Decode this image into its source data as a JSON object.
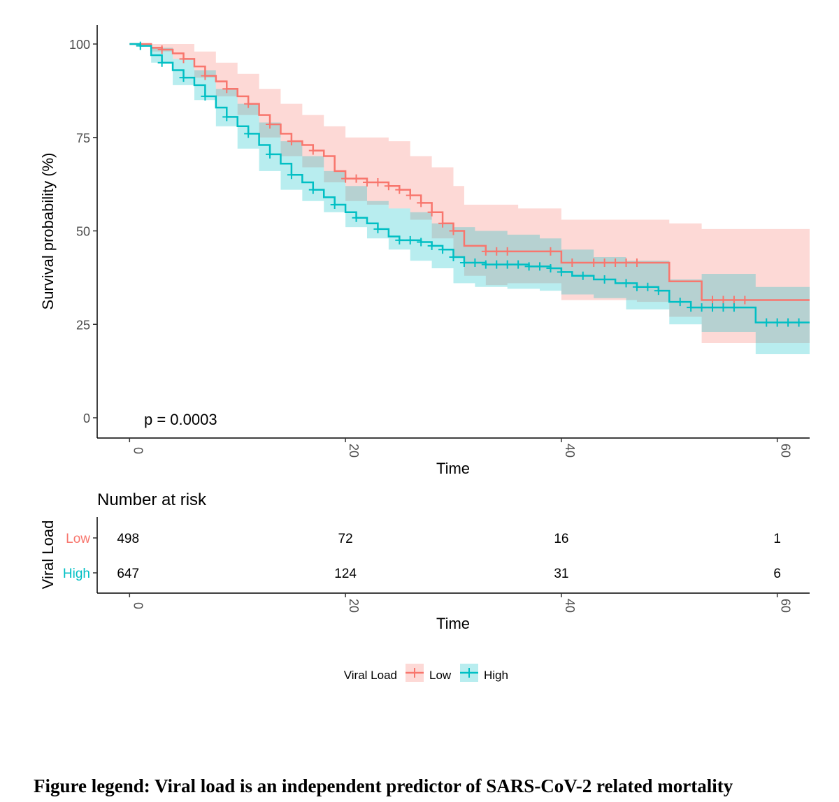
{
  "caption": "Figure legend: Viral load is an independent predictor of SARS-CoV-2 related mortality",
  "chart_data": {
    "type": "line",
    "subtype": "kaplan-meier",
    "ylabel": "Survival probability (%)",
    "xlabel": "Time",
    "xlim": [
      -3,
      63
    ],
    "ylim": [
      0,
      100
    ],
    "xticks": [
      0,
      20,
      40,
      60
    ],
    "yticks": [
      0,
      25,
      50,
      75,
      100
    ],
    "annotation": "p = 0.0003",
    "grid": false,
    "legend": {
      "title": "Viral Load",
      "position": "bottom",
      "items": [
        "Low",
        "High"
      ]
    },
    "colors": {
      "Low": "#F8766D",
      "High": "#00BFC4"
    },
    "series": [
      {
        "name": "Low",
        "color": "#F8766D",
        "points": [
          [
            0,
            100
          ],
          [
            1,
            100
          ],
          [
            2,
            99
          ],
          [
            3,
            98.5
          ],
          [
            4,
            97.5
          ],
          [
            5,
            96
          ],
          [
            6,
            94
          ],
          [
            7,
            91.5
          ],
          [
            8,
            90
          ],
          [
            9,
            88
          ],
          [
            10,
            86
          ],
          [
            11,
            84
          ],
          [
            12,
            81
          ],
          [
            13,
            78.5
          ],
          [
            14,
            76
          ],
          [
            15,
            74
          ],
          [
            16,
            73
          ],
          [
            17,
            71.5
          ],
          [
            18,
            70
          ],
          [
            19,
            66
          ],
          [
            20,
            64
          ],
          [
            22,
            63
          ],
          [
            24,
            62
          ],
          [
            25,
            61
          ],
          [
            26,
            59.5
          ],
          [
            27,
            57.5
          ],
          [
            28,
            55
          ],
          [
            29,
            52
          ],
          [
            30,
            50
          ],
          [
            31,
            46
          ],
          [
            33,
            44.5
          ],
          [
            35,
            44.5
          ],
          [
            36,
            44.5
          ],
          [
            40,
            41.5
          ],
          [
            47,
            41.5
          ],
          [
            50,
            36.5
          ],
          [
            53,
            31.5
          ],
          [
            63,
            31.5
          ]
        ],
        "ci_upper": [
          [
            0,
            100
          ],
          [
            2,
            100
          ],
          [
            4,
            100
          ],
          [
            6,
            98
          ],
          [
            8,
            95
          ],
          [
            10,
            92
          ],
          [
            12,
            88
          ],
          [
            14,
            84
          ],
          [
            16,
            81
          ],
          [
            18,
            78
          ],
          [
            20,
            75
          ],
          [
            22,
            75
          ],
          [
            24,
            74
          ],
          [
            26,
            70
          ],
          [
            28,
            67
          ],
          [
            30,
            62
          ],
          [
            31,
            57
          ],
          [
            33,
            57
          ],
          [
            36,
            56
          ],
          [
            40,
            53
          ],
          [
            47,
            53
          ],
          [
            50,
            52
          ],
          [
            53,
            50.5
          ],
          [
            63,
            50.5
          ]
        ],
        "ci_lower": [
          [
            0,
            100
          ],
          [
            2,
            98
          ],
          [
            4,
            96
          ],
          [
            6,
            91
          ],
          [
            8,
            86
          ],
          [
            10,
            81
          ],
          [
            12,
            75
          ],
          [
            14,
            70
          ],
          [
            16,
            67
          ],
          [
            18,
            63
          ],
          [
            20,
            58
          ],
          [
            22,
            57
          ],
          [
            24,
            56
          ],
          [
            26,
            53
          ],
          [
            28,
            48
          ],
          [
            30,
            43
          ],
          [
            31,
            38
          ],
          [
            33,
            35.5
          ],
          [
            35,
            36
          ],
          [
            40,
            31.5
          ],
          [
            47,
            31
          ],
          [
            50,
            27
          ],
          [
            53,
            20
          ],
          [
            63,
            20
          ]
        ],
        "censor_times": [
          3,
          5,
          7,
          9,
          11,
          13,
          15,
          17,
          20,
          21,
          22,
          23,
          24,
          25,
          26,
          27,
          28,
          29,
          30,
          33,
          34,
          35,
          39,
          41,
          43,
          44,
          45,
          46,
          47,
          54,
          55,
          56,
          57
        ]
      },
      {
        "name": "High",
        "color": "#00BFC4",
        "points": [
          [
            0,
            100
          ],
          [
            1,
            99.5
          ],
          [
            2,
            97
          ],
          [
            3,
            95
          ],
          [
            4,
            93
          ],
          [
            5,
            91
          ],
          [
            6,
            89
          ],
          [
            7,
            86
          ],
          [
            8,
            83
          ],
          [
            9,
            80.5
          ],
          [
            10,
            78
          ],
          [
            11,
            76
          ],
          [
            12,
            73
          ],
          [
            13,
            70.5
          ],
          [
            14,
            68
          ],
          [
            15,
            65
          ],
          [
            16,
            63
          ],
          [
            17,
            61
          ],
          [
            18,
            59
          ],
          [
            19,
            57
          ],
          [
            20,
            55
          ],
          [
            21,
            53.5
          ],
          [
            22,
            52
          ],
          [
            23,
            50.5
          ],
          [
            24,
            48.5
          ],
          [
            25,
            47.5
          ],
          [
            26,
            47.5
          ],
          [
            27,
            47
          ],
          [
            28,
            46
          ],
          [
            29,
            45
          ],
          [
            30,
            43
          ],
          [
            31,
            41.5
          ],
          [
            33,
            41
          ],
          [
            35,
            41
          ],
          [
            37,
            40.5
          ],
          [
            39,
            40
          ],
          [
            40,
            39
          ],
          [
            41,
            38
          ],
          [
            43,
            37
          ],
          [
            45,
            36
          ],
          [
            47,
            35
          ],
          [
            49,
            34
          ],
          [
            50,
            31
          ],
          [
            52,
            29.5
          ],
          [
            58,
            25.5
          ],
          [
            63,
            25.5
          ]
        ],
        "ci_upper": [
          [
            0,
            100
          ],
          [
            2,
            99
          ],
          [
            4,
            96
          ],
          [
            6,
            93
          ],
          [
            8,
            88
          ],
          [
            10,
            84
          ],
          [
            12,
            79
          ],
          [
            14,
            74
          ],
          [
            16,
            70
          ],
          [
            18,
            66
          ],
          [
            20,
            62
          ],
          [
            22,
            58
          ],
          [
            24,
            56
          ],
          [
            26,
            55
          ],
          [
            28,
            52
          ],
          [
            30,
            51
          ],
          [
            32,
            50
          ],
          [
            35,
            49
          ],
          [
            38,
            48
          ],
          [
            40,
            45
          ],
          [
            43,
            43
          ],
          [
            46,
            42
          ],
          [
            50,
            37
          ],
          [
            53,
            38.5
          ],
          [
            58,
            35
          ],
          [
            63,
            38
          ]
        ],
        "ci_lower": [
          [
            0,
            100
          ],
          [
            2,
            95
          ],
          [
            4,
            89
          ],
          [
            6,
            85
          ],
          [
            8,
            78
          ],
          [
            10,
            72
          ],
          [
            12,
            66
          ],
          [
            14,
            61
          ],
          [
            16,
            58
          ],
          [
            18,
            55
          ],
          [
            20,
            51
          ],
          [
            22,
            48
          ],
          [
            24,
            45
          ],
          [
            26,
            42
          ],
          [
            28,
            40
          ],
          [
            30,
            36
          ],
          [
            32,
            35
          ],
          [
            35,
            34.5
          ],
          [
            38,
            34
          ],
          [
            40,
            33
          ],
          [
            43,
            32
          ],
          [
            46,
            29
          ],
          [
            50,
            25
          ],
          [
            53,
            23
          ],
          [
            58,
            17
          ],
          [
            63,
            17
          ]
        ],
        "censor_times": [
          1,
          3,
          5,
          7,
          9,
          11,
          13,
          15,
          17,
          19,
          21,
          23,
          25,
          26,
          27,
          28,
          29,
          30,
          31,
          32,
          33,
          34,
          35,
          36,
          37,
          38,
          39,
          40,
          42,
          44,
          46,
          47,
          48,
          49,
          51,
          52,
          53,
          54,
          55,
          56,
          59,
          60,
          61,
          62
        ]
      }
    ],
    "risk_table": {
      "title": "Number at risk",
      "ylabel": "Viral Load",
      "xlabel": "Time",
      "times": [
        0,
        20,
        40,
        60
      ],
      "rows": [
        {
          "label": "Low",
          "color": "#F8766D",
          "values": [
            498,
            72,
            16,
            1
          ]
        },
        {
          "label": "High",
          "color": "#00BFC4",
          "values": [
            647,
            124,
            31,
            6
          ]
        }
      ]
    }
  }
}
